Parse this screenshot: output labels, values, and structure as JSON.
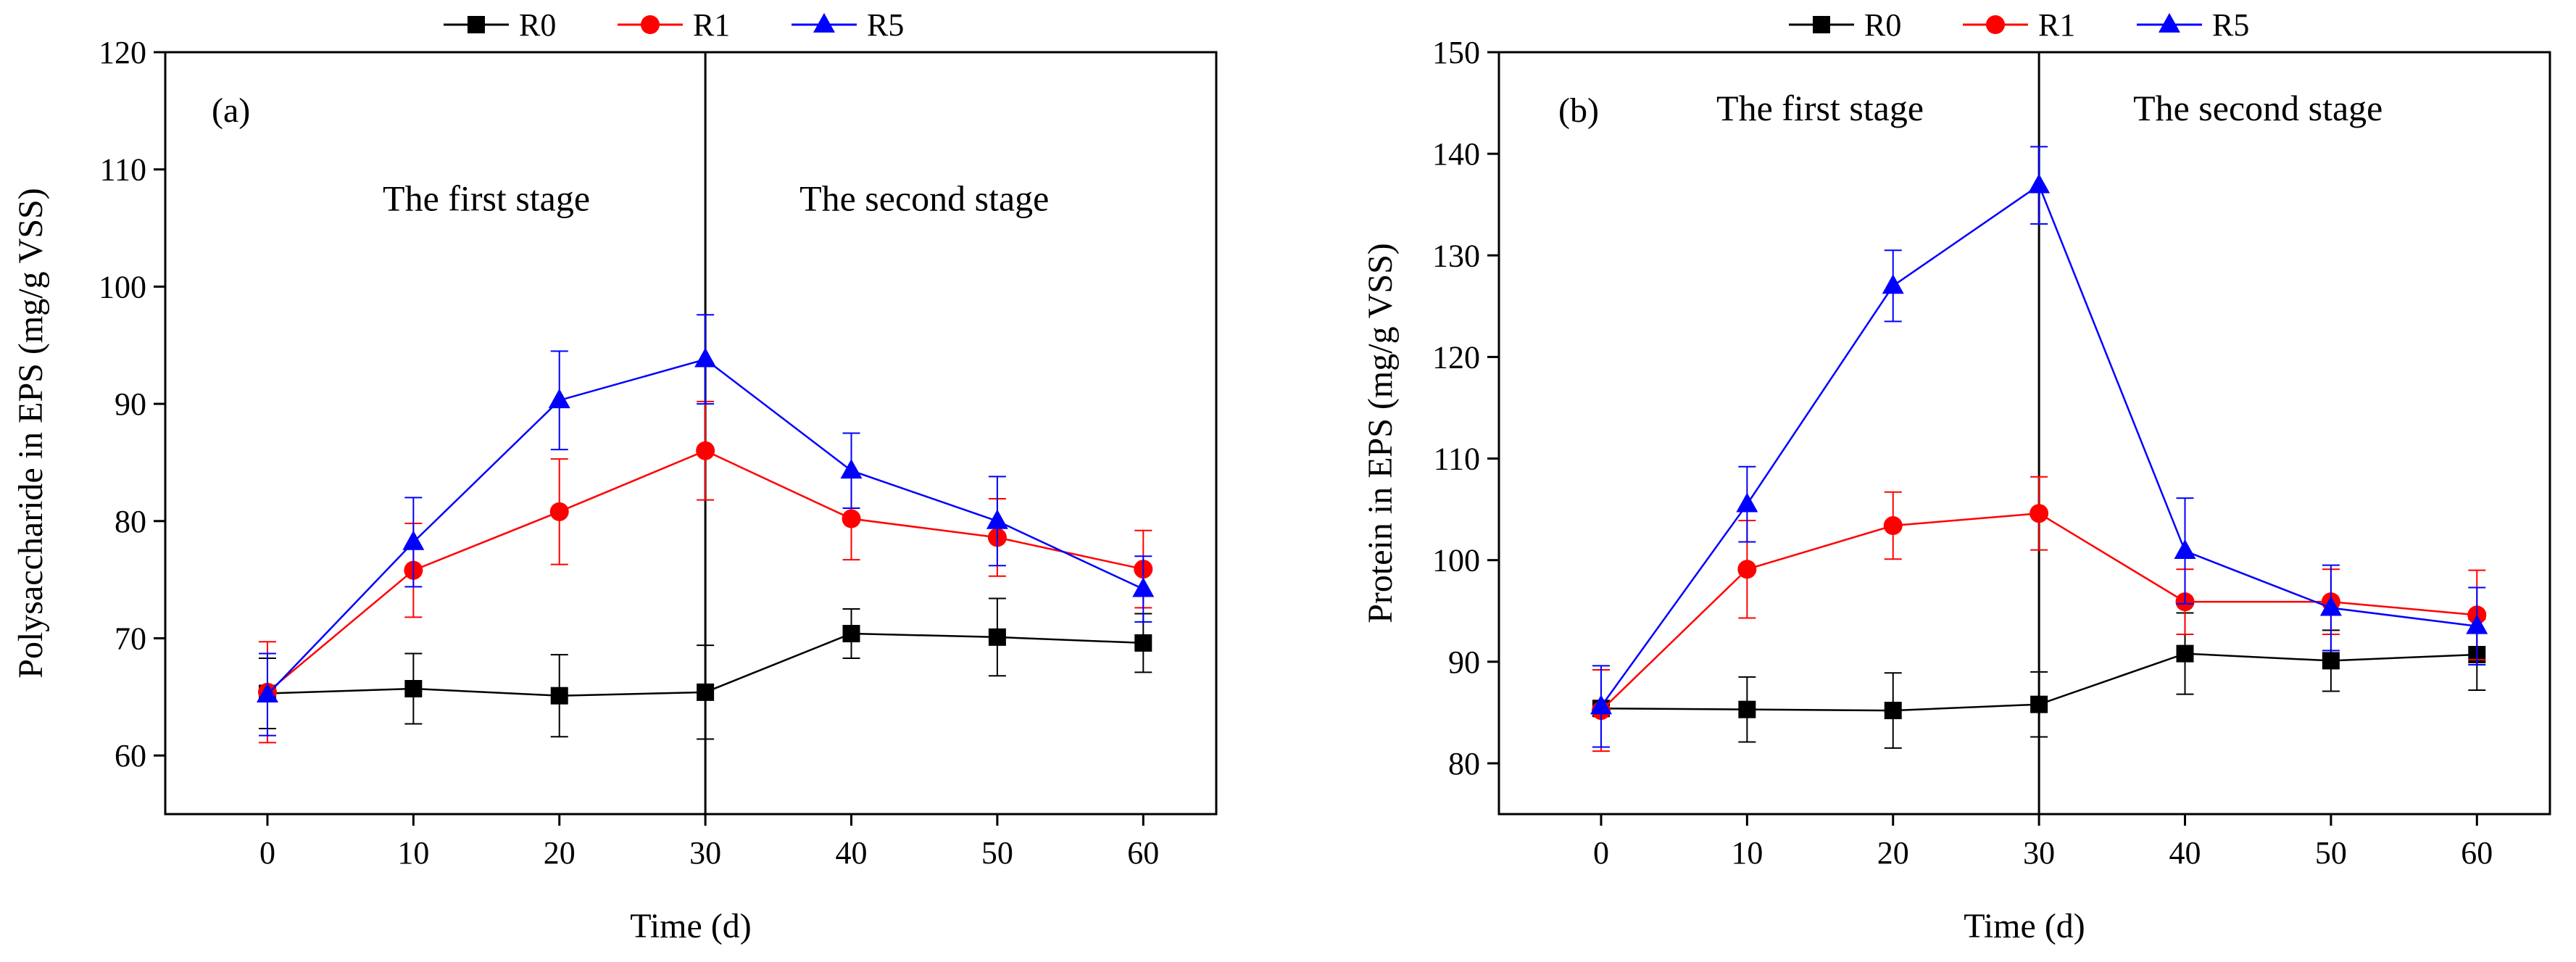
{
  "chart_data": [
    {
      "type": "line",
      "panel_label": "(a)",
      "title": "",
      "xlabel": "Time (d)",
      "ylabel": "Polysaccharide in EPS (mg/g VSS)",
      "xlim": [
        -7,
        65
      ],
      "ylim": [
        55,
        120
      ],
      "xticks": [
        0,
        10,
        20,
        30,
        40,
        50,
        60
      ],
      "yticks": [
        60,
        70,
        80,
        90,
        100,
        110,
        120
      ],
      "x": [
        0,
        10,
        20,
        30,
        40,
        50,
        60
      ],
      "divider_x": 30,
      "grid": false,
      "legend_position": "top-center",
      "annotations": [
        {
          "text": "The first stage",
          "x": 15,
          "y": 106.5
        },
        {
          "text": "The second stage",
          "x": 45,
          "y": 106.5
        }
      ],
      "series": [
        {
          "name": "R0",
          "color": "#000000",
          "marker": "square",
          "values": [
            65.3,
            65.7,
            65.1,
            65.4,
            70.4,
            70.1,
            69.6
          ],
          "errors": [
            3.0,
            3.0,
            3.5,
            4.0,
            2.1,
            3.3,
            2.5
          ]
        },
        {
          "name": "R1",
          "color": "#ff0000",
          "marker": "circle",
          "values": [
            65.4,
            75.8,
            80.8,
            86.0,
            80.2,
            78.6,
            75.9
          ],
          "errors": [
            4.3,
            4.0,
            4.5,
            4.2,
            3.5,
            3.3,
            3.3
          ]
        },
        {
          "name": "R5",
          "color": "#0000ff",
          "marker": "triangle",
          "values": [
            65.2,
            78.2,
            90.3,
            93.8,
            84.3,
            80.0,
            74.2
          ],
          "errors": [
            3.5,
            3.8,
            4.2,
            3.8,
            3.2,
            3.8,
            2.8
          ]
        }
      ]
    },
    {
      "type": "line",
      "panel_label": "(b)",
      "title": "",
      "xlabel": "Time (d)",
      "ylabel": "Protein in EPS (mg/g VSS)",
      "xlim": [
        -7,
        65
      ],
      "ylim": [
        75,
        150
      ],
      "xticks": [
        0,
        10,
        20,
        30,
        40,
        50,
        60
      ],
      "yticks": [
        80,
        90,
        100,
        110,
        120,
        130,
        140,
        150
      ],
      "x": [
        0,
        10,
        20,
        30,
        40,
        50,
        60
      ],
      "divider_x": 30,
      "grid": false,
      "legend_position": "top-center",
      "annotations": [
        {
          "text": "The first stage",
          "x": 15,
          "y": 143.3
        },
        {
          "text": "The second stage",
          "x": 45,
          "y": 143.3
        }
      ],
      "series": [
        {
          "name": "R0",
          "color": "#000000",
          "marker": "square",
          "values": [
            85.4,
            85.3,
            85.2,
            85.8,
            90.8,
            90.1,
            90.7
          ],
          "errors": [
            3.8,
            3.2,
            3.7,
            3.2,
            4.0,
            3.0,
            3.5
          ]
        },
        {
          "name": "R1",
          "color": "#ff0000",
          "marker": "circle",
          "values": [
            85.2,
            99.1,
            103.4,
            104.6,
            95.9,
            95.9,
            94.6
          ],
          "errors": [
            4.0,
            4.8,
            3.3,
            3.6,
            3.2,
            3.2,
            4.4
          ]
        },
        {
          "name": "R5",
          "color": "#0000ff",
          "marker": "triangle",
          "values": [
            85.6,
            105.5,
            127.0,
            136.9,
            100.9,
            95.3,
            93.5
          ],
          "errors": [
            4.0,
            3.7,
            3.5,
            3.8,
            5.2,
            4.2,
            3.8
          ]
        }
      ]
    }
  ]
}
